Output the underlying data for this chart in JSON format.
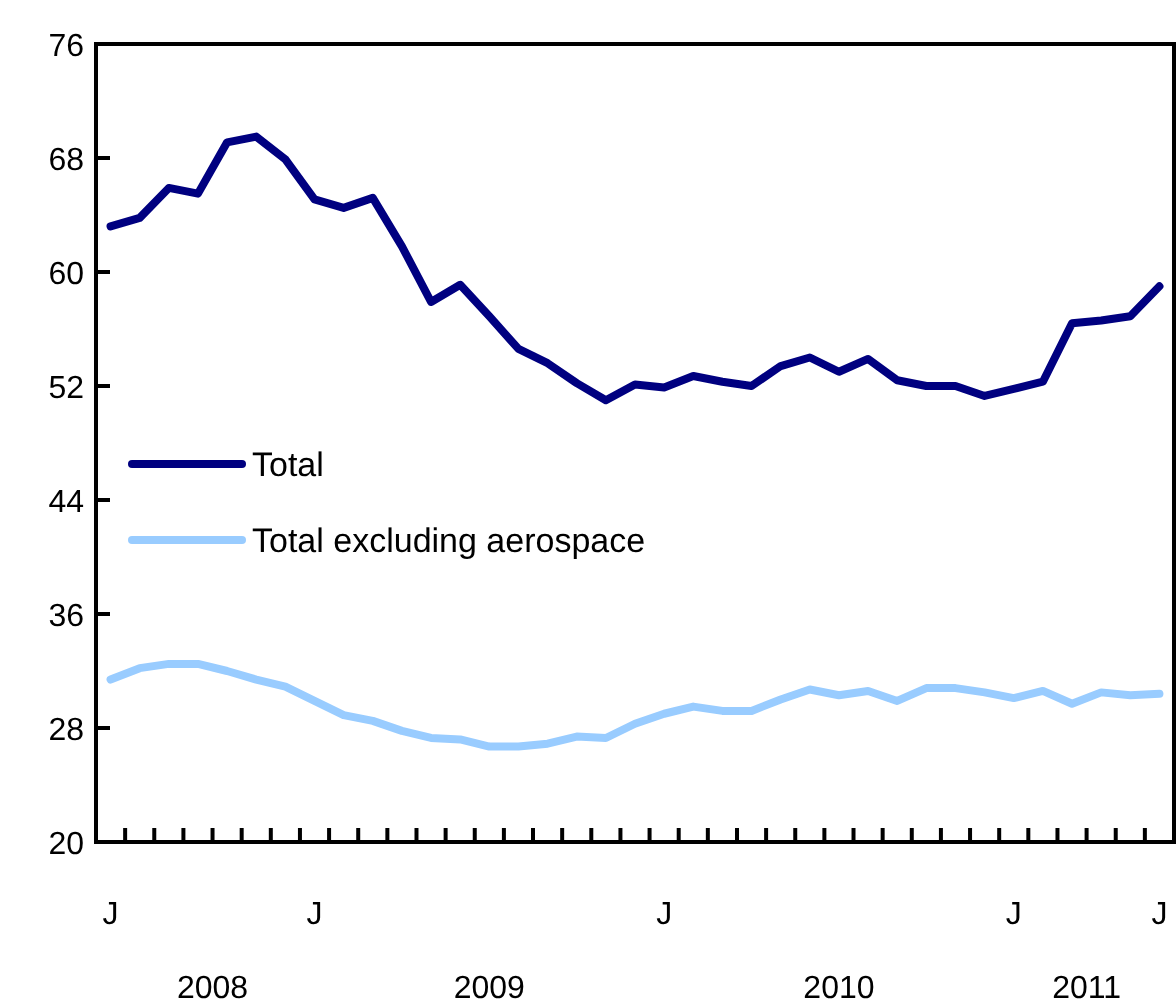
{
  "chart_data": {
    "type": "line",
    "categories": [
      "J",
      null,
      null,
      null,
      null,
      null,
      null,
      "J",
      null,
      null,
      null,
      null,
      null,
      null,
      null,
      null,
      null,
      null,
      null,
      "J",
      null,
      null,
      null,
      null,
      null,
      null,
      null,
      null,
      null,
      null,
      null,
      "J",
      null,
      null,
      null,
      null,
      "J"
    ],
    "series": [
      {
        "name": "Total",
        "color": "#000080",
        "values": [
          63.2,
          63.8,
          65.9,
          65.5,
          69.1,
          69.5,
          67.9,
          65.1,
          64.5,
          65.2,
          61.8,
          57.9,
          59.1,
          56.9,
          54.6,
          53.6,
          52.2,
          51.0,
          52.1,
          51.9,
          52.7,
          52.3,
          52.0,
          53.4,
          54.0,
          53.0,
          53.9,
          52.4,
          52.0,
          52.0,
          51.3,
          51.8,
          52.3,
          56.4,
          56.6,
          56.9,
          59.0
        ]
      },
      {
        "name": "Total excluding aerospace",
        "color": "#99ccff",
        "values": [
          31.4,
          32.2,
          32.5,
          32.5,
          32.0,
          31.4,
          30.9,
          29.9,
          28.9,
          28.5,
          27.8,
          27.3,
          27.2,
          26.7,
          26.7,
          26.9,
          27.4,
          27.3,
          28.3,
          29.0,
          29.5,
          29.2,
          29.2,
          30.0,
          30.7,
          30.3,
          30.6,
          29.9,
          30.8,
          30.8,
          30.5,
          30.1,
          30.6,
          29.7,
          30.5,
          30.3,
          30.4
        ]
      }
    ],
    "ylim": [
      20,
      76
    ],
    "yticks": [
      20,
      28,
      36,
      44,
      52,
      60,
      68,
      76
    ],
    "annotations": [
      "2008",
      "2009",
      "2010",
      "2011"
    ],
    "legend": "left",
    "grid": false,
    "marker": "none",
    "line_style": "solid"
  }
}
